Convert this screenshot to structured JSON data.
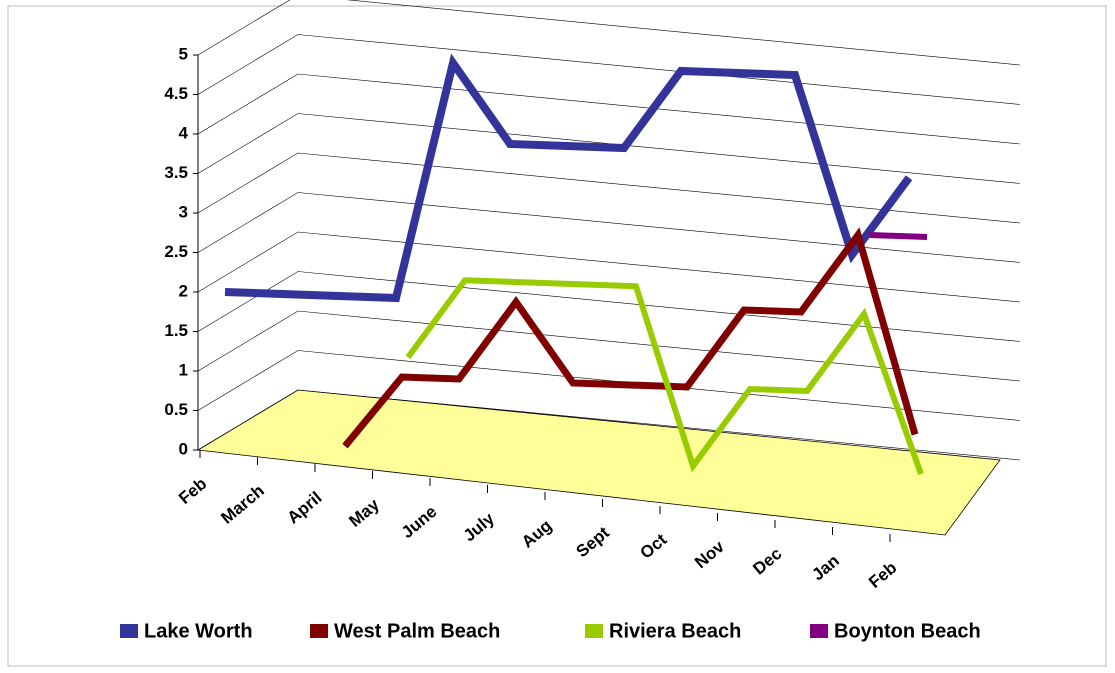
{
  "chart_data": {
    "type": "line",
    "categories": [
      "Feb",
      "March",
      "April",
      "May",
      "June",
      "July",
      "Aug",
      "Sept",
      "Oct",
      "Nov",
      "Dec",
      "Jan",
      "Feb"
    ],
    "series": [
      {
        "name": "Lake Worth",
        "color": "#333399",
        "values": [
          2,
          2,
          2,
          2,
          5,
          4,
          4,
          4,
          5,
          5,
          5,
          2.75,
          3.75
        ]
      },
      {
        "name": "West Palm Beach",
        "color": "#800000",
        "values": [
          null,
          null,
          0.1,
          1,
          1,
          2,
          1,
          1,
          1,
          2,
          2,
          3,
          0.5
        ]
      },
      {
        "name": "Riviera Beach",
        "color": "#99cc00",
        "values": [
          null,
          null,
          null,
          1.25,
          2.25,
          2.25,
          2.25,
          2.25,
          0,
          1,
          1,
          2,
          0
        ]
      },
      {
        "name": "Boynton Beach",
        "color": "#800080",
        "values": [
          null,
          null,
          null,
          null,
          null,
          null,
          null,
          null,
          null,
          null,
          null,
          3,
          3
        ]
      }
    ],
    "ylim": [
      0,
      5
    ],
    "yticks": [
      0,
      0.5,
      1,
      1.5,
      2,
      2.5,
      3,
      3.5,
      4,
      4.5,
      5
    ],
    "grid": true,
    "floor_color": "#ffff99"
  }
}
